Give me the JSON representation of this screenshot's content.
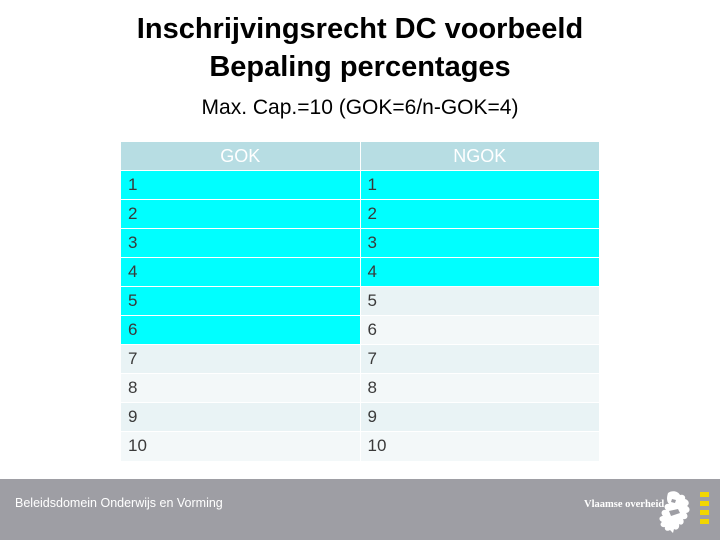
{
  "title": {
    "line1": "Inschrijvingsrecht DC voorbeeld",
    "line2": "Bepaling percentages"
  },
  "subtitle": "Max. Cap.=10 (GOK=6/n-GOK=4)",
  "table": {
    "headers": [
      "GOK",
      "NGOK"
    ],
    "rows": [
      [
        "1",
        "1"
      ],
      [
        "2",
        "2"
      ],
      [
        "3",
        "3"
      ],
      [
        "4",
        "4"
      ],
      [
        "5",
        "5"
      ],
      [
        "6",
        "6"
      ],
      [
        "7",
        "7"
      ],
      [
        "8",
        "8"
      ],
      [
        "9",
        "9"
      ],
      [
        "10",
        "10"
      ]
    ],
    "highlighted_gok_count": 6,
    "highlighted_ngok_count": 4,
    "highlight_color": "#00ffff",
    "header_color": "#b7dde3"
  },
  "footer": {
    "text": "Beleidsdomein Onderwijs en Vorming",
    "brand": "Vlaamse overheid",
    "brand_icon": "flemish-lion-icon",
    "background": "#9e9ea4"
  }
}
